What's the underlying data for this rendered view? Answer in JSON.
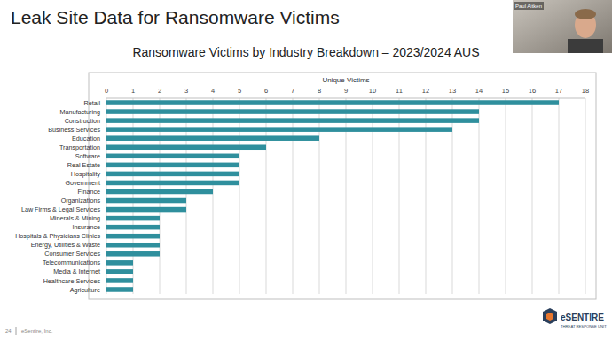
{
  "slide": {
    "title": "Leak Site Data for Ransomware Victims",
    "presenter": "Paul Aitken",
    "page_number": "24",
    "footer": "eSentire, Inc.",
    "logo": "eSENTIRE",
    "logo_tagline": "THREAT RESPONSE UNIT"
  },
  "chart_data": {
    "type": "bar",
    "orientation": "horizontal",
    "title": "Ransomware Victims by Industry Breakdown – 2023/2024 AUS",
    "x_label": "Unique Victims",
    "categories": [
      "Retail",
      "Manufacturing",
      "Construction",
      "Business Services",
      "Education",
      "Transportation",
      "Software",
      "Real Estate",
      "Hospitality",
      "Government",
      "Finance",
      "Organizations",
      "Law Firms & Legal Services",
      "Minerals & Mining",
      "Insurance",
      "Hospitals & Physicians Clinics",
      "Energy, Utilities & Waste",
      "Consumer Services",
      "Telecommunications",
      "Media & Internet",
      "Healthcare Services",
      "Agriculture"
    ],
    "values": [
      17,
      14,
      14,
      13,
      8,
      6,
      5,
      5,
      5,
      5,
      4,
      3,
      3,
      2,
      2,
      2,
      2,
      2,
      1,
      1,
      1,
      1
    ],
    "color": "#2f8f9d",
    "xlim": [
      0,
      18
    ],
    "xticks": [
      0,
      1,
      2,
      3,
      4,
      5,
      6,
      7,
      8,
      9,
      10,
      11,
      12,
      13,
      14,
      15,
      16,
      17,
      18
    ],
    "grid": true
  }
}
